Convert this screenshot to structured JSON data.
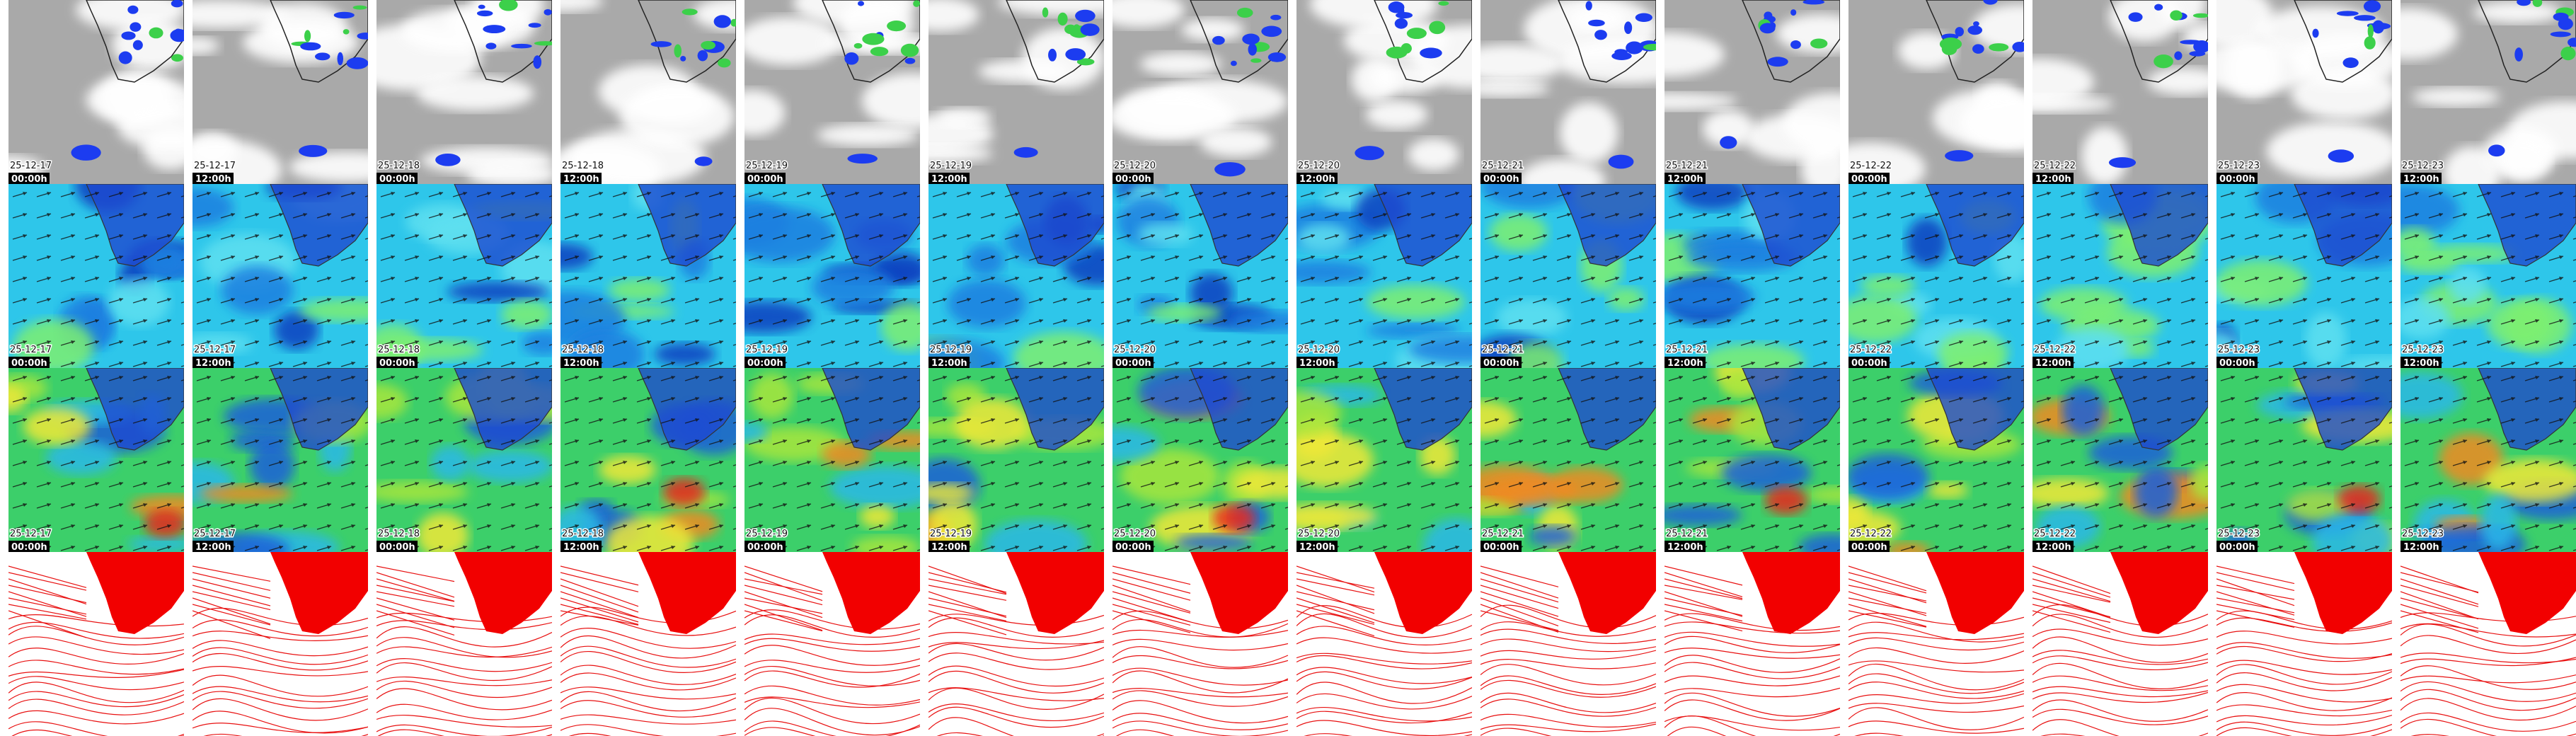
{
  "rows": [
    {
      "tiles": [
        {
          "date": "25-12-17",
          "time": "00:00h"
        },
        {
          "date": "25-12-17",
          "time": "12:00h"
        },
        {
          "date": "25-12-18",
          "time": "00:00h"
        },
        {
          "date": "25-12-18",
          "time": "12:00h"
        },
        {
          "date": "25-12-19",
          "time": "00:00h"
        },
        {
          "date": "25-12-19",
          "time": "12:00h"
        },
        {
          "date": "25-12-20",
          "time": "00:00h"
        },
        {
          "date": "25-12-20",
          "time": "12:00h"
        },
        {
          "date": "25-12-21",
          "time": "00:00h"
        },
        {
          "date": "25-12-21",
          "time": "12:00h"
        },
        {
          "date": "25-12-22",
          "time": "00:00h"
        },
        {
          "date": "25-12-22",
          "time": "12:00h"
        },
        {
          "date": "25-12-23",
          "time": "00:00h"
        },
        {
          "date": "25-12-23",
          "time": "12:00h"
        }
      ]
    },
    {
      "tiles": [
        {
          "date": "25-12-17",
          "time": "00:00h"
        },
        {
          "date": "25-12-17",
          "time": "12:00h"
        },
        {
          "date": "25-12-18",
          "time": "00:00h"
        },
        {
          "date": "25-12-18",
          "time": "12:00h"
        },
        {
          "date": "25-12-19",
          "time": "00:00h"
        },
        {
          "date": "25-12-19",
          "time": "12:00h"
        },
        {
          "date": "25-12-20",
          "time": "00:00h"
        },
        {
          "date": "25-12-20",
          "time": "12:00h"
        },
        {
          "date": "25-12-21",
          "time": "00:00h"
        },
        {
          "date": "25-12-21",
          "time": "12:00h"
        },
        {
          "date": "25-12-22",
          "time": "00:00h"
        },
        {
          "date": "25-12-22",
          "time": "12:00h"
        },
        {
          "date": "25-12-23",
          "time": "00:00h"
        },
        {
          "date": "25-12-23",
          "time": "12:00h"
        }
      ]
    },
    {
      "tiles": [
        {
          "date": "25-12-17",
          "time": "00:00h"
        },
        {
          "date": "25-12-17",
          "time": "12:00h"
        },
        {
          "date": "25-12-18",
          "time": "00:00h"
        },
        {
          "date": "25-12-18",
          "time": "12:00h"
        },
        {
          "date": "25-12-19",
          "time": "00:00h"
        },
        {
          "date": "25-12-19",
          "time": "12:00h"
        },
        {
          "date": "25-12-20",
          "time": "00:00h"
        },
        {
          "date": "25-12-20",
          "time": "12:00h"
        },
        {
          "date": "25-12-21",
          "time": "00:00h"
        },
        {
          "date": "25-12-21",
          "time": "12:00h"
        },
        {
          "date": "25-12-22",
          "time": "00:00h"
        },
        {
          "date": "25-12-22",
          "time": "12:00h"
        },
        {
          "date": "25-12-23",
          "time": "00:00h"
        },
        {
          "date": "25-12-23",
          "time": "12:00h"
        }
      ]
    }
  ]
}
